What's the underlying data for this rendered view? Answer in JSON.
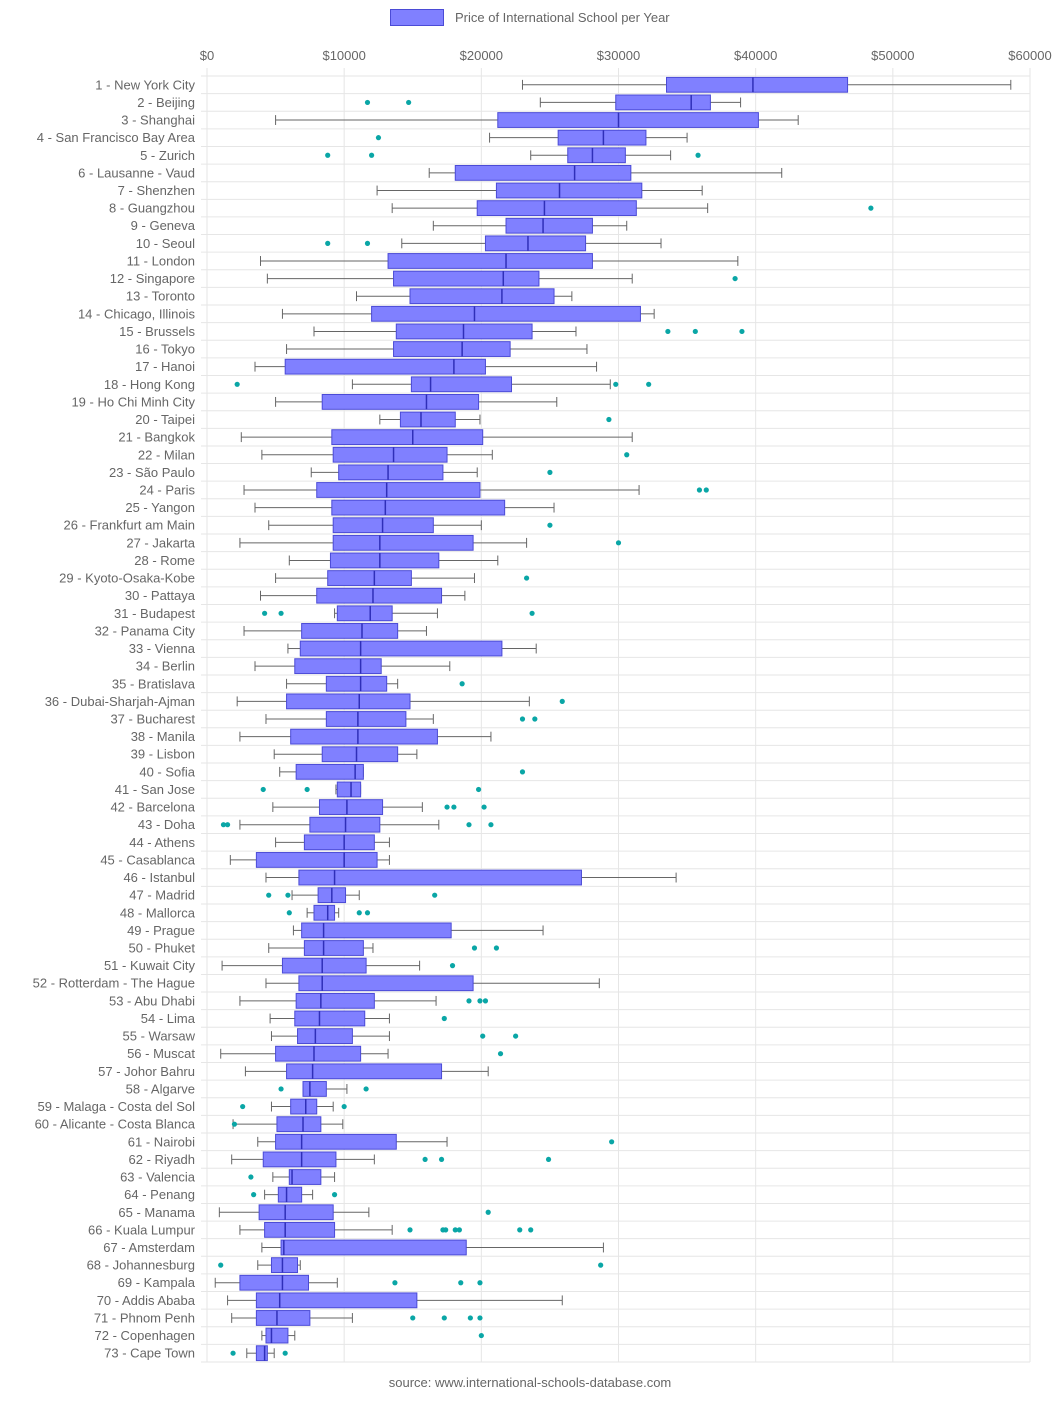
{
  "chart_data": {
    "type": "boxplot",
    "orientation": "horizontal",
    "legend": {
      "label": "Price of International School per Year",
      "position": "top"
    },
    "source": "source: www.international-schools-database.com",
    "xlim": [
      0,
      60000
    ],
    "x_ticks": [
      {
        "value": 0,
        "label": "$0"
      },
      {
        "value": 10000,
        "label": "$10000"
      },
      {
        "value": 20000,
        "label": "$20000"
      },
      {
        "value": 30000,
        "label": "$30000"
      },
      {
        "value": 40000,
        "label": "$40000"
      },
      {
        "value": 50000,
        "label": "$50000"
      },
      {
        "value": 60000,
        "label": "$60000"
      }
    ],
    "grid": true,
    "colors": {
      "box_fill": "#8080ff",
      "box_border": "#4b4bd6",
      "whisker": "#666666",
      "outlier": "#0aa6a6",
      "grid": "#e6e6e6"
    },
    "series": [
      {
        "name": "Price of International School per Year",
        "data": [
          {
            "label": "1 - New York City",
            "min": 23000,
            "q1": 33500,
            "median": 39800,
            "q3": 46700,
            "max": 58600,
            "outliers": []
          },
          {
            "label": "2 - Beijing",
            "min": 24300,
            "q1": 29800,
            "median": 35300,
            "q3": 36700,
            "max": 38900,
            "outliers": [
              11700,
              14700
            ]
          },
          {
            "label": "3 - Shanghai",
            "min": 5000,
            "q1": 21200,
            "median": 30000,
            "q3": 40200,
            "max": 43100,
            "outliers": []
          },
          {
            "label": "4 - San Francisco Bay Area",
            "min": 20600,
            "q1": 25600,
            "median": 28900,
            "q3": 32000,
            "max": 35000,
            "outliers": [
              12500
            ]
          },
          {
            "label": "5 - Zurich",
            "min": 23600,
            "q1": 26300,
            "median": 28100,
            "q3": 30500,
            "max": 33800,
            "outliers": [
              8800,
              12000,
              35800
            ]
          },
          {
            "label": "6 - Lausanne - Vaud",
            "min": 16200,
            "q1": 18100,
            "median": 26800,
            "q3": 30900,
            "max": 41900,
            "outliers": []
          },
          {
            "label": "7 - Shenzhen",
            "min": 12400,
            "q1": 21100,
            "median": 25700,
            "q3": 31700,
            "max": 36100,
            "outliers": []
          },
          {
            "label": "8 - Guangzhou",
            "min": 13500,
            "q1": 19700,
            "median": 24600,
            "q3": 31300,
            "max": 36500,
            "outliers": [
              48400
            ]
          },
          {
            "label": "9 - Geneva",
            "min": 16500,
            "q1": 21800,
            "median": 24500,
            "q3": 28100,
            "max": 30600,
            "outliers": []
          },
          {
            "label": "10 - Seoul",
            "min": 14200,
            "q1": 20300,
            "median": 23400,
            "q3": 27600,
            "max": 33100,
            "outliers": [
              8800,
              11700
            ]
          },
          {
            "label": "11 - London",
            "min": 3900,
            "q1": 13200,
            "median": 21800,
            "q3": 28100,
            "max": 38700,
            "outliers": []
          },
          {
            "label": "12 - Singapore",
            "min": 4400,
            "q1": 13600,
            "median": 21600,
            "q3": 24200,
            "max": 31000,
            "outliers": [
              38500
            ]
          },
          {
            "label": "13 - Toronto",
            "min": 10900,
            "q1": 14800,
            "median": 21500,
            "q3": 25300,
            "max": 26600,
            "outliers": []
          },
          {
            "label": "14 - Chicago, Illinois",
            "min": 5500,
            "q1": 12000,
            "median": 19500,
            "q3": 31600,
            "max": 32600,
            "outliers": []
          },
          {
            "label": "15 - Brussels",
            "min": 7800,
            "q1": 13800,
            "median": 18700,
            "q3": 23700,
            "max": 26900,
            "outliers": [
              33600,
              35600,
              39000
            ]
          },
          {
            "label": "16 - Tokyo",
            "min": 5800,
            "q1": 13600,
            "median": 18600,
            "q3": 22100,
            "max": 27700,
            "outliers": []
          },
          {
            "label": "17 - Hanoi",
            "min": 3500,
            "q1": 5700,
            "median": 18000,
            "q3": 20300,
            "max": 28400,
            "outliers": []
          },
          {
            "label": "18 - Hong Kong",
            "min": 10600,
            "q1": 14900,
            "median": 16300,
            "q3": 22200,
            "max": 29400,
            "outliers": [
              2200,
              29800,
              32200
            ]
          },
          {
            "label": "19 - Ho Chi Minh City",
            "min": 5000,
            "q1": 8400,
            "median": 16000,
            "q3": 19800,
            "max": 25500,
            "outliers": []
          },
          {
            "label": "20 - Taipei",
            "min": 12600,
            "q1": 14100,
            "median": 15600,
            "q3": 18100,
            "max": 19900,
            "outliers": [
              29300
            ]
          },
          {
            "label": "21 - Bangkok",
            "min": 2500,
            "q1": 9100,
            "median": 15000,
            "q3": 20100,
            "max": 31000,
            "outliers": []
          },
          {
            "label": "22 - Milan",
            "min": 4000,
            "q1": 9200,
            "median": 13600,
            "q3": 17500,
            "max": 20800,
            "outliers": [
              30600
            ]
          },
          {
            "label": "23 - São Paulo",
            "min": 7600,
            "q1": 9600,
            "median": 13200,
            "q3": 17200,
            "max": 19700,
            "outliers": [
              25000
            ]
          },
          {
            "label": "24 - Paris",
            "min": 2700,
            "q1": 8000,
            "median": 13100,
            "q3": 19900,
            "max": 31500,
            "outliers": [
              35900,
              36400
            ]
          },
          {
            "label": "25 - Yangon",
            "min": 3500,
            "q1": 9100,
            "median": 13000,
            "q3": 21700,
            "max": 25300,
            "outliers": []
          },
          {
            "label": "26 - Frankfurt am Main",
            "min": 4500,
            "q1": 9200,
            "median": 12800,
            "q3": 16500,
            "max": 20000,
            "outliers": [
              25000
            ]
          },
          {
            "label": "27 - Jakarta",
            "min": 2400,
            "q1": 9200,
            "median": 12600,
            "q3": 19400,
            "max": 23300,
            "outliers": [
              30000
            ]
          },
          {
            "label": "28 - Rome",
            "min": 6000,
            "q1": 9000,
            "median": 12600,
            "q3": 16900,
            "max": 21200,
            "outliers": []
          },
          {
            "label": "29 - Kyoto-Osaka-Kobe",
            "min": 5000,
            "q1": 8800,
            "median": 12200,
            "q3": 14900,
            "max": 19500,
            "outliers": [
              23300
            ]
          },
          {
            "label": "30 - Pattaya",
            "min": 3900,
            "q1": 8000,
            "median": 12100,
            "q3": 17100,
            "max": 18800,
            "outliers": []
          },
          {
            "label": "31 - Budapest",
            "min": 9300,
            "q1": 9500,
            "median": 11900,
            "q3": 13500,
            "max": 16800,
            "outliers": [
              4200,
              5400,
              23700
            ]
          },
          {
            "label": "32 - Panama City",
            "min": 2700,
            "q1": 6900,
            "median": 11300,
            "q3": 13900,
            "max": 16000,
            "outliers": []
          },
          {
            "label": "33 - Vienna",
            "min": 5900,
            "q1": 6800,
            "median": 11200,
            "q3": 21500,
            "max": 24000,
            "outliers": []
          },
          {
            "label": "34 - Berlin",
            "min": 3500,
            "q1": 6400,
            "median": 11200,
            "q3": 12700,
            "max": 17700,
            "outliers": []
          },
          {
            "label": "35 - Bratislava",
            "min": 5800,
            "q1": 8700,
            "median": 11200,
            "q3": 13100,
            "max": 13900,
            "outliers": [
              18600
            ]
          },
          {
            "label": "36 - Dubai-Sharjah-Ajman",
            "min": 2200,
            "q1": 5800,
            "median": 11100,
            "q3": 14800,
            "max": 23500,
            "outliers": [
              25900
            ]
          },
          {
            "label": "37 - Bucharest",
            "min": 4300,
            "q1": 8700,
            "median": 11000,
            "q3": 14500,
            "max": 16500,
            "outliers": [
              23000,
              23900
            ]
          },
          {
            "label": "38 - Manila",
            "min": 2400,
            "q1": 6100,
            "median": 11000,
            "q3": 16800,
            "max": 20700,
            "outliers": []
          },
          {
            "label": "39 - Lisbon",
            "min": 4900,
            "q1": 8400,
            "median": 10900,
            "q3": 13900,
            "max": 15300,
            "outliers": []
          },
          {
            "label": "40 - Sofia",
            "min": 5300,
            "q1": 6500,
            "median": 10800,
            "q3": 11400,
            "max": 11400,
            "outliers": [
              23000
            ]
          },
          {
            "label": "41 - San Jose",
            "min": 9400,
            "q1": 9500,
            "median": 10500,
            "q3": 11200,
            "max": 11200,
            "outliers": [
              4100,
              7300,
              19800
            ]
          },
          {
            "label": "42 - Barcelona",
            "min": 4800,
            "q1": 8200,
            "median": 10200,
            "q3": 12800,
            "max": 15700,
            "outliers": [
              17500,
              18000,
              20200
            ]
          },
          {
            "label": "43 - Doha",
            "min": 2400,
            "q1": 7500,
            "median": 10100,
            "q3": 12600,
            "max": 16900,
            "outliers": [
              1200,
              1500,
              19100,
              20700
            ]
          },
          {
            "label": "44 - Athens",
            "min": 5000,
            "q1": 7100,
            "median": 10000,
            "q3": 12200,
            "max": 13300,
            "outliers": []
          },
          {
            "label": "45 - Casablanca",
            "min": 1700,
            "q1": 3600,
            "median": 10000,
            "q3": 12400,
            "max": 13300,
            "outliers": []
          },
          {
            "label": "46 - Istanbul",
            "min": 4300,
            "q1": 6700,
            "median": 9300,
            "q3": 27300,
            "max": 34200,
            "outliers": []
          },
          {
            "label": "47 - Madrid",
            "min": 6200,
            "q1": 8100,
            "median": 9100,
            "q3": 10100,
            "max": 11100,
            "outliers": [
              4500,
              5900,
              16600
            ]
          },
          {
            "label": "48 - Mallorca",
            "min": 7300,
            "q1": 7800,
            "median": 8800,
            "q3": 9300,
            "max": 9600,
            "outliers": [
              6000,
              11100,
              11700
            ]
          },
          {
            "label": "49 - Prague",
            "min": 6300,
            "q1": 6900,
            "median": 8500,
            "q3": 17800,
            "max": 24500,
            "outliers": []
          },
          {
            "label": "50 - Phuket",
            "min": 4500,
            "q1": 7100,
            "median": 8500,
            "q3": 11400,
            "max": 12100,
            "outliers": [
              19500,
              21100
            ]
          },
          {
            "label": "51 - Kuwait City",
            "min": 1100,
            "q1": 5500,
            "median": 8400,
            "q3": 11600,
            "max": 15500,
            "outliers": [
              17900
            ]
          },
          {
            "label": "52 - Rotterdam - The Hague",
            "min": 4300,
            "q1": 6700,
            "median": 8400,
            "q3": 19400,
            "max": 28600,
            "outliers": []
          },
          {
            "label": "53 - Abu Dhabi",
            "min": 2400,
            "q1": 6500,
            "median": 8300,
            "q3": 12200,
            "max": 16700,
            "outliers": [
              19100,
              19900,
              20300
            ]
          },
          {
            "label": "54 - Lima",
            "min": 4600,
            "q1": 6400,
            "median": 8200,
            "q3": 11500,
            "max": 13300,
            "outliers": [
              17300
            ]
          },
          {
            "label": "55 - Warsaw",
            "min": 4700,
            "q1": 6600,
            "median": 7900,
            "q3": 10600,
            "max": 13300,
            "outliers": [
              20100,
              22500
            ]
          },
          {
            "label": "56 - Muscat",
            "min": 1000,
            "q1": 5000,
            "median": 7800,
            "q3": 11200,
            "max": 13200,
            "outliers": [
              21400
            ]
          },
          {
            "label": "57 - Johor Bahru",
            "min": 2800,
            "q1": 5800,
            "median": 7700,
            "q3": 17100,
            "max": 20500,
            "outliers": []
          },
          {
            "label": "58 - Algarve",
            "min": 7000,
            "q1": 7000,
            "median": 7500,
            "q3": 8700,
            "max": 10200,
            "outliers": [
              5400,
              11600
            ]
          },
          {
            "label": "59 - Malaga - Costa del Sol",
            "min": 4700,
            "q1": 6100,
            "median": 7200,
            "q3": 8000,
            "max": 9200,
            "outliers": [
              2600,
              10000
            ]
          },
          {
            "label": "60 - Alicante - Costa Blanca",
            "min": 1900,
            "q1": 5100,
            "median": 7000,
            "q3": 8300,
            "max": 9900,
            "outliers": [
              2000
            ]
          },
          {
            "label": "61 - Nairobi",
            "min": 3700,
            "q1": 5000,
            "median": 6900,
            "q3": 13800,
            "max": 17500,
            "outliers": [
              29500
            ]
          },
          {
            "label": "62 - Riyadh",
            "min": 1800,
            "q1": 4100,
            "median": 6900,
            "q3": 9400,
            "max": 12200,
            "outliers": [
              15900,
              17100,
              24900
            ]
          },
          {
            "label": "63 - Valencia",
            "min": 4800,
            "q1": 6000,
            "median": 6200,
            "q3": 8300,
            "max": 9300,
            "outliers": [
              3200
            ]
          },
          {
            "label": "64 - Penang",
            "min": 4200,
            "q1": 5200,
            "median": 5800,
            "q3": 6900,
            "max": 7700,
            "outliers": [
              3400,
              9300
            ]
          },
          {
            "label": "65 - Manama",
            "min": 900,
            "q1": 3800,
            "median": 5700,
            "q3": 9200,
            "max": 11800,
            "outliers": [
              20500
            ]
          },
          {
            "label": "66 - Kuala Lumpur",
            "min": 2400,
            "q1": 4200,
            "median": 5700,
            "q3": 9300,
            "max": 13500,
            "outliers": [
              14800,
              17200,
              17400,
              18100,
              18400,
              22800,
              23600
            ]
          },
          {
            "label": "67 - Amsterdam",
            "min": 4000,
            "q1": 5400,
            "median": 5600,
            "q3": 18900,
            "max": 28900,
            "outliers": []
          },
          {
            "label": "68 - Johannesburg",
            "min": 3700,
            "q1": 4700,
            "median": 5500,
            "q3": 6600,
            "max": 6800,
            "outliers": [
              1000,
              28700
            ]
          },
          {
            "label": "69 - Kampala",
            "min": 600,
            "q1": 2400,
            "median": 5500,
            "q3": 7400,
            "max": 9500,
            "outliers": [
              13700,
              18500,
              19900
            ]
          },
          {
            "label": "70 - Addis Ababa",
            "min": 1500,
            "q1": 3600,
            "median": 5300,
            "q3": 15300,
            "max": 25900,
            "outliers": []
          },
          {
            "label": "71 - Phnom Penh",
            "min": 1800,
            "q1": 3600,
            "median": 5100,
            "q3": 7500,
            "max": 10600,
            "outliers": [
              15000,
              17300,
              19200,
              19900
            ]
          },
          {
            "label": "72 - Copenhagen",
            "min": 4000,
            "q1": 4300,
            "median": 4700,
            "q3": 5900,
            "max": 6400,
            "outliers": [
              20000
            ]
          },
          {
            "label": "73 - Cape Town",
            "min": 2900,
            "q1": 3600,
            "median": 4200,
            "q3": 4400,
            "max": 4900,
            "outliers": [
              1900,
              5700
            ]
          }
        ]
      }
    ]
  }
}
